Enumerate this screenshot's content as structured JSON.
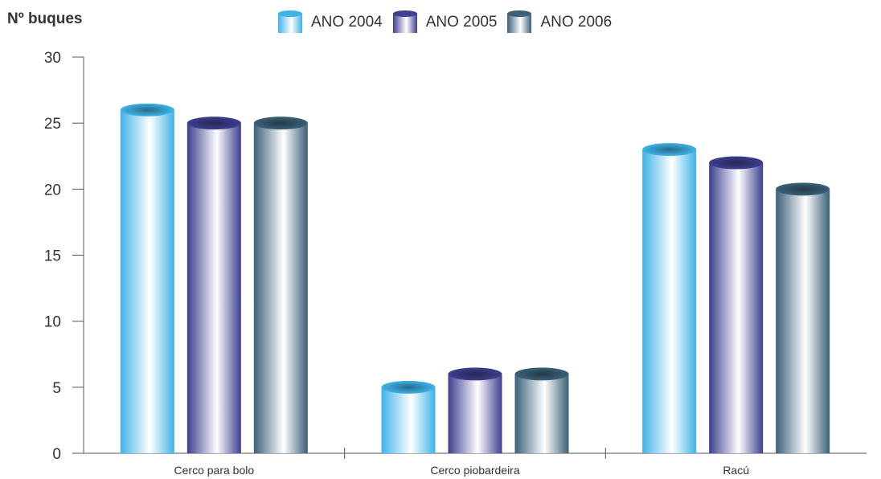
{
  "chart_data": {
    "type": "bar",
    "title": "",
    "xlabel": "",
    "ylabel": "Nº buques",
    "categories": [
      "Cerco para bolo",
      "Cerco piobardeira",
      "Racú"
    ],
    "series": [
      {
        "name": "ANO 2004",
        "values": [
          26,
          5,
          23
        ],
        "color": "#3fb3e8"
      },
      {
        "name": "ANO 2005",
        "values": [
          25,
          6,
          22
        ],
        "color": "#3d3f8f"
      },
      {
        "name": "ANO 2006",
        "values": [
          25,
          6,
          20
        ],
        "color": "#3b6079"
      }
    ],
    "ylim": [
      0,
      30
    ],
    "yticks": [
      0,
      5,
      10,
      15,
      20,
      25,
      30
    ],
    "legend": "top-center",
    "grid": false,
    "bar_style": "3d-cylinder"
  }
}
